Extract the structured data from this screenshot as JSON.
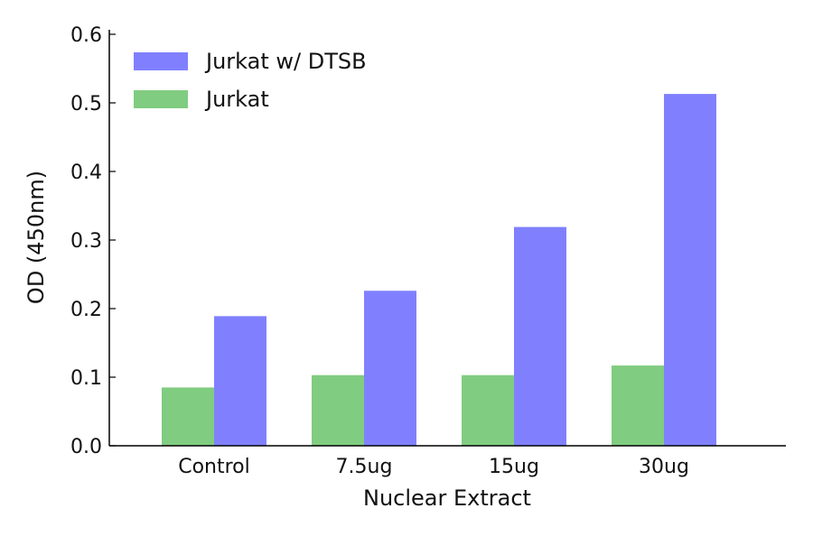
{
  "chart_data": {
    "type": "bar",
    "title": "",
    "xlabel": "Nuclear Extract",
    "ylabel": "OD (450nm)",
    "categories": [
      "Control",
      "7.5ug",
      "15ug",
      "30ug"
    ],
    "ylim": [
      0,
      0.6
    ],
    "yticks": [
      "0.0",
      "0.1",
      "0.2",
      "0.3",
      "0.4",
      "0.5",
      "0.6"
    ],
    "ytick_values": [
      0,
      0.1,
      0.2,
      0.3,
      0.4,
      0.5,
      0.6
    ],
    "legend_position": "top-left",
    "grid": false,
    "series": [
      {
        "name": "Jurkat",
        "color": "#80cc80",
        "values": [
          0.085,
          0.103,
          0.103,
          0.117
        ]
      },
      {
        "name": "Jurkat w/ DTSB",
        "color": "#8080ff",
        "values": [
          0.189,
          0.226,
          0.319,
          0.513
        ]
      }
    ]
  }
}
